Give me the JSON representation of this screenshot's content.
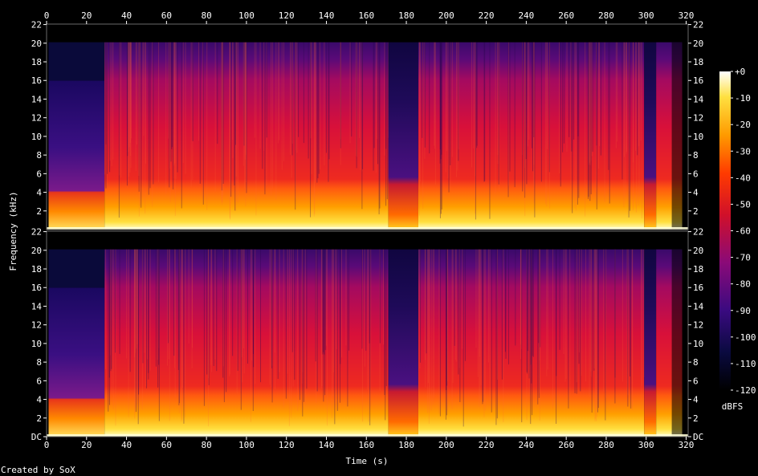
{
  "chart_data": {
    "type": "heatmap",
    "title": "",
    "xlabel": "Time (s)",
    "ylabel": "Frequency (kHz)",
    "xlim": [
      0,
      321
    ],
    "ylim": [
      0,
      22.05
    ],
    "x_ticks": [
      "0",
      "20",
      "40",
      "60",
      "80",
      "100",
      "120",
      "140",
      "160",
      "180",
      "200",
      "220",
      "240",
      "260",
      "280",
      "300",
      "320"
    ],
    "top_x_ticks": [
      "0",
      "20",
      "40",
      "60",
      "80",
      "100",
      "120",
      "140",
      "160",
      "180",
      "200",
      "220",
      "240",
      "260",
      "280",
      "300",
      "320"
    ],
    "channels": [
      {
        "y_ticks": [
          "22",
          "20",
          "18",
          "16",
          "14",
          "12",
          "10",
          "8",
          "6",
          "4",
          "2"
        ]
      },
      {
        "y_ticks": [
          "DC",
          "2",
          "4",
          "6",
          "8",
          "10",
          "12",
          "14",
          "16",
          "18",
          "20",
          "22"
        ]
      }
    ],
    "colorbar": {
      "label": "dBFS",
      "range": [
        -120,
        0
      ],
      "ticks": [
        "+0",
        "-10",
        "-20",
        "-30",
        "-40",
        "-50",
        "-60",
        "-70",
        "-80",
        "-90",
        "-100",
        "-110",
        "-120"
      ]
    },
    "segments": [
      {
        "start": 0,
        "end": 1,
        "cutoff_khz": 0,
        "level": "silence"
      },
      {
        "start": 1,
        "end": 29,
        "cutoff_khz": 16,
        "level": "quiet-intro"
      },
      {
        "start": 29,
        "end": 171,
        "cutoff_khz": 20.1,
        "level": "loud"
      },
      {
        "start": 171,
        "end": 186,
        "cutoff_khz": 20.1,
        "level": "quiet-break"
      },
      {
        "start": 186,
        "end": 299,
        "cutoff_khz": 20.1,
        "level": "loud"
      },
      {
        "start": 299,
        "end": 305,
        "cutoff_khz": 20.1,
        "level": "quiet-break"
      },
      {
        "start": 305,
        "end": 318,
        "cutoff_khz": 20.1,
        "level": "fade-out"
      }
    ],
    "colors": {
      "bg": "#000000",
      "noise_floor": "#0a0930",
      "mid": "#d6122a",
      "high": "#ffb000",
      "peak": "#ffffe6"
    }
  },
  "footer": "Created by SoX"
}
